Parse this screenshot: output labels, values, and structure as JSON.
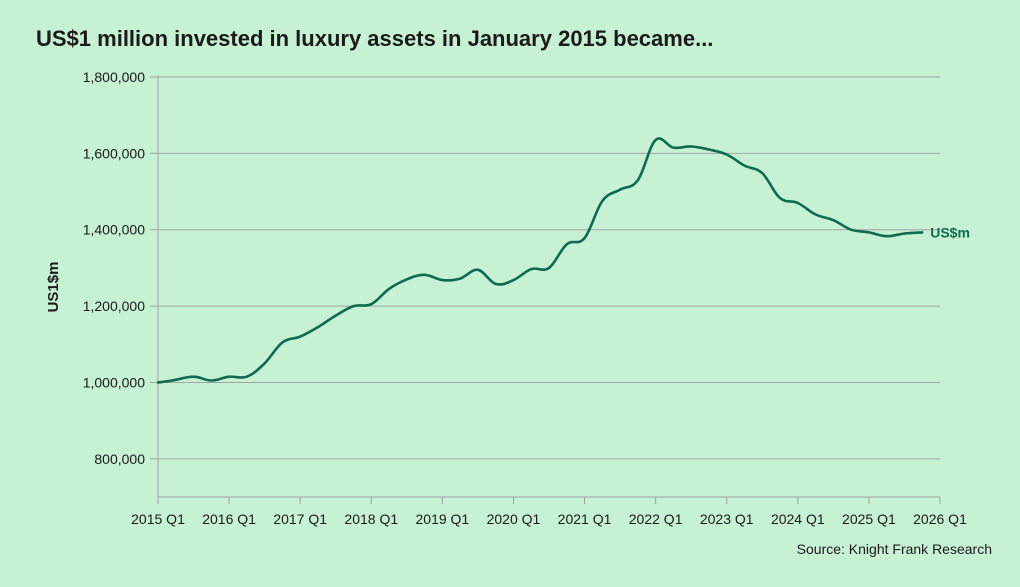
{
  "title": "US$1 million invested in luxury assets in January 2015 became...",
  "source": "Source: Knight Frank Research",
  "colors": {
    "background": "#c6f1d2",
    "line": "#0f6a4f",
    "grid": "#a3a3a3",
    "text": "#1b1b1b"
  },
  "chart_data": {
    "type": "line",
    "title": "US$1 million invested in luxury assets in January 2015 became...",
    "xlabel": "",
    "ylabel": "US1$m",
    "xlim": [
      2015.0,
      2026.0
    ],
    "ylim": [
      700000,
      1800000
    ],
    "grid": "horizontal",
    "x_ticks": [
      2015,
      2016,
      2017,
      2018,
      2019,
      2020,
      2021,
      2022,
      2023,
      2024,
      2025,
      2026
    ],
    "x_tick_labels": [
      "2015 Q1",
      "2016 Q1",
      "2017 Q1",
      "2018 Q1",
      "2019 Q1",
      "2020 Q1",
      "2021 Q1",
      "2022 Q1",
      "2023 Q1",
      "2024 Q1",
      "2025 Q1",
      "2026 Q1"
    ],
    "y_ticks": [
      800000,
      1000000,
      1200000,
      1400000,
      1600000,
      1800000
    ],
    "y_tick_labels": [
      "800,000",
      "1,000,000",
      "1,200,000",
      "1,400,000",
      "1,600,000",
      "1,800,000"
    ],
    "series": [
      {
        "name": "US$m",
        "x": [
          2015.0,
          2015.2,
          2015.5,
          2015.75,
          2016.0,
          2016.25,
          2016.5,
          2016.75,
          2017.0,
          2017.25,
          2017.5,
          2017.75,
          2018.0,
          2018.25,
          2018.5,
          2018.75,
          2019.0,
          2019.25,
          2019.5,
          2019.75,
          2020.0,
          2020.25,
          2020.5,
          2020.75,
          2021.0,
          2021.25,
          2021.5,
          2021.75,
          2022.0,
          2022.25,
          2022.5,
          2022.75,
          2023.0,
          2023.25,
          2023.5,
          2023.75,
          2024.0,
          2024.25,
          2024.5,
          2024.75,
          2025.0,
          2025.25,
          2025.5,
          2025.75
        ],
        "values": [
          1000000,
          1005000,
          1015000,
          1005000,
          1015000,
          1015000,
          1050000,
          1105000,
          1120000,
          1145000,
          1175000,
          1200000,
          1205000,
          1245000,
          1270000,
          1282000,
          1268000,
          1272000,
          1295000,
          1258000,
          1268000,
          1297000,
          1300000,
          1362000,
          1378000,
          1475000,
          1505000,
          1530000,
          1635000,
          1615000,
          1618000,
          1610000,
          1597000,
          1568000,
          1548000,
          1483000,
          1470000,
          1440000,
          1425000,
          1400000,
          1393000,
          1383000,
          1390000,
          1393000
        ]
      }
    ]
  }
}
